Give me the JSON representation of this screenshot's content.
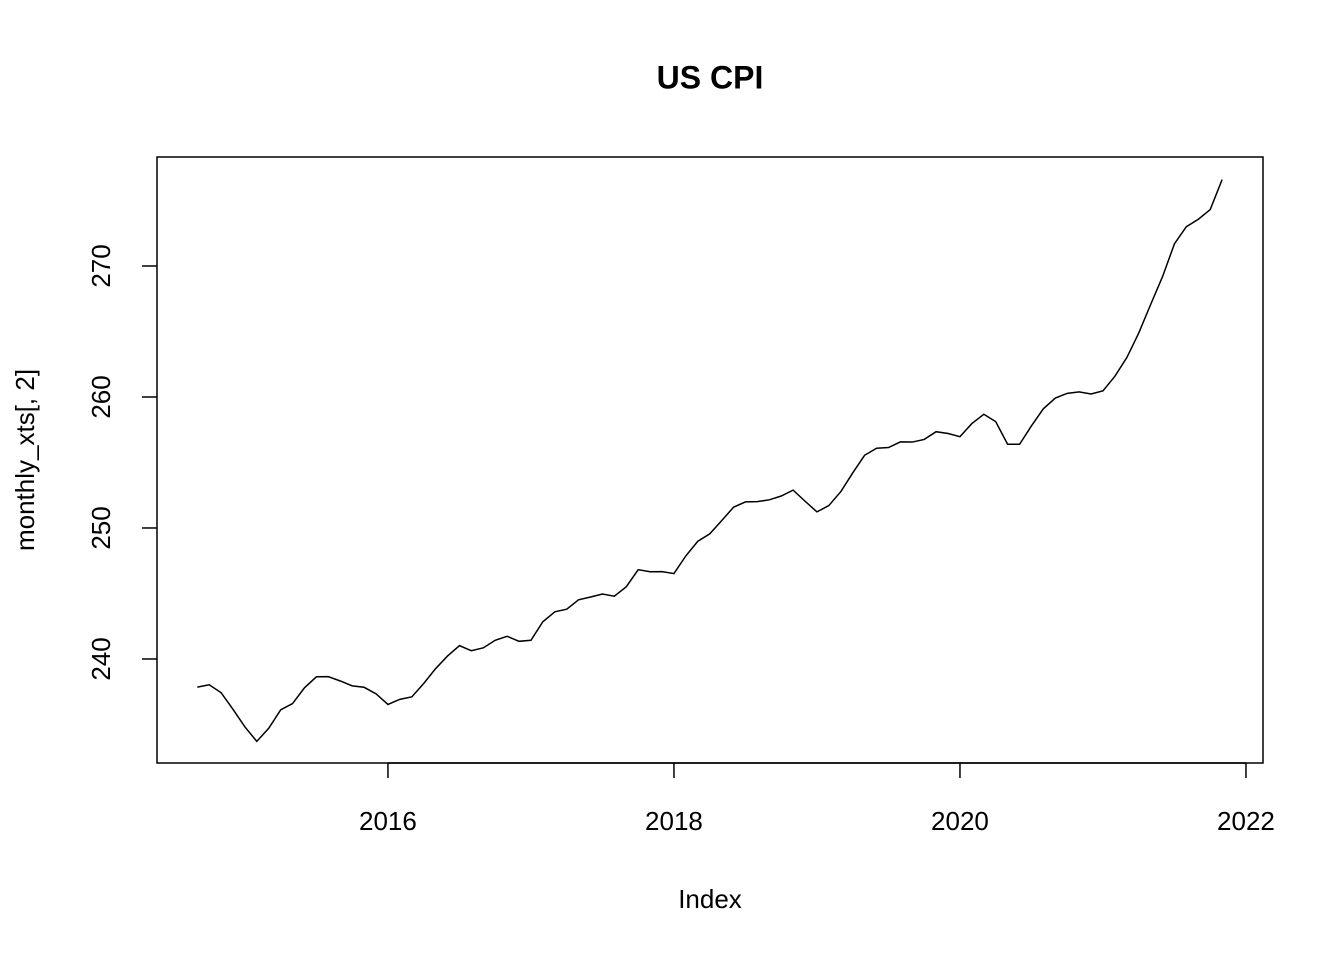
{
  "chart_data": {
    "type": "line",
    "title": "US CPI",
    "x_label": "Index",
    "y_label": "monthly_xts[, 2]",
    "x": [
      2014.667,
      2014.75,
      2014.833,
      2014.917,
      2015,
      2015.083,
      2015.167,
      2015.25,
      2015.333,
      2015.417,
      2015.5,
      2015.583,
      2015.667,
      2015.75,
      2015.833,
      2015.917,
      2016,
      2016.083,
      2016.167,
      2016.25,
      2016.333,
      2016.417,
      2016.5,
      2016.583,
      2016.667,
      2016.75,
      2016.833,
      2016.917,
      2017,
      2017.083,
      2017.167,
      2017.25,
      2017.333,
      2017.417,
      2017.5,
      2017.583,
      2017.667,
      2017.75,
      2017.833,
      2017.917,
      2018,
      2018.083,
      2018.167,
      2018.25,
      2018.333,
      2018.417,
      2018.5,
      2018.583,
      2018.667,
      2018.75,
      2018.833,
      2018.917,
      2019,
      2019.083,
      2019.167,
      2019.25,
      2019.333,
      2019.417,
      2019.5,
      2019.583,
      2019.667,
      2019.75,
      2019.833,
      2019.917,
      2020,
      2020.083,
      2020.167,
      2020.25,
      2020.333,
      2020.417,
      2020.5,
      2020.583,
      2020.667,
      2020.75,
      2020.833,
      2020.917,
      2021,
      2021.083,
      2021.167,
      2021.25,
      2021.333,
      2021.417,
      2021.5,
      2021.583,
      2021.667,
      2021.75,
      2021.833
    ],
    "series": [
      {
        "name": "monthly_xts[, 2]",
        "color": "#000000",
        "values": [
          237.85,
          238.03,
          237.43,
          236.15,
          234.81,
          233.71,
          234.72,
          236.12,
          236.6,
          237.81,
          238.64,
          238.65,
          238.32,
          237.95,
          237.84,
          237.34,
          236.53,
          236.92,
          237.11,
          238.13,
          239.26,
          240.23,
          241.02,
          240.63,
          240.85,
          241.43,
          241.73,
          241.35,
          241.43,
          242.84,
          243.6,
          243.8,
          244.52,
          244.73,
          244.96,
          244.79,
          245.52,
          246.82,
          246.66,
          246.67,
          246.52,
          247.87,
          248.99,
          249.55,
          250.55,
          251.59,
          251.99,
          252.01,
          252.15,
          252.44,
          252.89,
          252.04,
          251.23,
          251.71,
          252.78,
          254.2,
          255.55,
          256.09,
          256.14,
          256.57,
          256.56,
          256.76,
          257.35,
          257.21,
          256.97,
          257.97,
          258.68,
          258.12,
          256.39,
          256.39,
          257.8,
          259.1,
          259.92,
          260.28,
          260.39,
          260.23,
          260.47,
          261.58,
          263.01,
          264.88,
          267.05,
          269.2,
          271.7,
          273.0,
          273.57,
          274.31,
          276.59
        ]
      }
    ],
    "xlim": [
      2014.385,
      2022.119
    ],
    "ylim": [
      232.06,
      278.32
    ],
    "xticks": [
      2016,
      2018,
      2020,
      2022
    ],
    "yticks": [
      240,
      250,
      260,
      270
    ],
    "grid": false
  }
}
